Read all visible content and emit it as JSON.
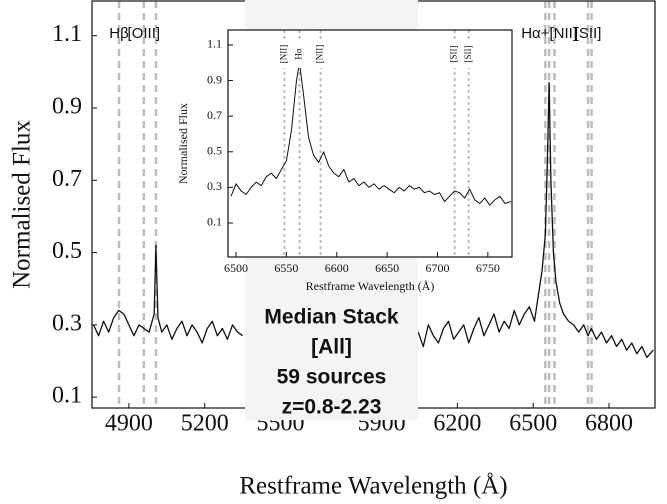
{
  "chart_data": [
    {
      "type": "line",
      "xlabel": "Restframe Wavelength (Å)",
      "ylabel": "Normalised Flux",
      "xlim": [
        4754,
        6982
      ],
      "ylim": [
        0.07,
        1.196
      ],
      "xticks": [
        4900,
        5200,
        5500,
        5900,
        6200,
        6500,
        6800
      ],
      "yticks": [
        0.1,
        0.3,
        0.5,
        0.7,
        0.9,
        1.1
      ],
      "x": [
        4760,
        4780,
        4800,
        4820,
        4840,
        4860,
        4880,
        4900,
        4920,
        4940,
        4960,
        4980,
        5000,
        5007,
        5015,
        5030,
        5050,
        5070,
        5090,
        5110,
        5130,
        5150,
        5170,
        5190,
        5210,
        5230,
        5250,
        5270,
        5290,
        5310,
        5330,
        5350,
        5700,
        6045,
        6065,
        6085,
        6105,
        6125,
        6145,
        6165,
        6185,
        6205,
        6225,
        6245,
        6265,
        6285,
        6305,
        6325,
        6345,
        6365,
        6385,
        6405,
        6425,
        6445,
        6465,
        6485,
        6505,
        6520,
        6535,
        6548,
        6556,
        6563,
        6570,
        6580,
        6590,
        6605,
        6620,
        6640,
        6660,
        6680,
        6700,
        6717,
        6730,
        6750,
        6770,
        6790,
        6810,
        6830,
        6850,
        6870,
        6890,
        6910,
        6930,
        6950,
        6975
      ],
      "series": [
        {
          "color": "#111111",
          "values": [
            0.3,
            0.27,
            0.31,
            0.28,
            0.32,
            0.34,
            0.33,
            0.3,
            0.27,
            0.3,
            0.29,
            0.28,
            0.33,
            0.52,
            0.32,
            0.28,
            0.3,
            0.26,
            0.29,
            0.31,
            0.27,
            0.3,
            0.28,
            0.25,
            0.29,
            0.31,
            0.27,
            0.29,
            0.26,
            0.3,
            0.28,
            0.27,
            null,
            0.28,
            0.24,
            0.3,
            0.27,
            0.25,
            0.29,
            0.31,
            0.26,
            0.28,
            0.3,
            0.25,
            0.29,
            0.32,
            0.27,
            0.3,
            0.33,
            0.28,
            0.31,
            0.29,
            0.34,
            0.3,
            0.33,
            0.35,
            0.31,
            0.38,
            0.45,
            0.55,
            0.75,
            0.97,
            0.7,
            0.5,
            0.42,
            0.36,
            0.33,
            0.31,
            0.3,
            0.28,
            0.3,
            0.27,
            0.29,
            0.26,
            0.28,
            0.25,
            0.27,
            0.24,
            0.26,
            0.23,
            0.25,
            0.22,
            0.24,
            0.21,
            0.23
          ]
        }
      ],
      "reference_lines": [
        {
          "x": 4861,
          "label": "Hβ"
        },
        {
          "x": 4959,
          "label": "[OIII]"
        },
        {
          "x": 5007
        },
        {
          "x": 6548
        },
        {
          "x": 6563,
          "label": "Hα+[NII]"
        },
        {
          "x": 6584
        },
        {
          "x": 6717,
          "label": "[SII]"
        },
        {
          "x": 6731
        }
      ],
      "annotation": [
        "Median Stack",
        "[All]",
        "59 sources",
        "z=0.8-2.23"
      ]
    },
    {
      "type": "line",
      "xlabel": "Restframe Wavelength (Å)",
      "ylabel": "Normalised Flux",
      "xlim": [
        6492,
        6774
      ],
      "ylim": [
        -0.091,
        1.184
      ],
      "xticks": [
        6500,
        6550,
        6600,
        6650,
        6700,
        6750
      ],
      "yticks": [
        0.1,
        0.3,
        0.5,
        0.7,
        0.9,
        1.1
      ],
      "x": [
        6495,
        6500,
        6505,
        6510,
        6515,
        6520,
        6525,
        6530,
        6535,
        6540,
        6545,
        6550,
        6555,
        6560,
        6563,
        6567,
        6572,
        6577,
        6582,
        6587,
        6592,
        6597,
        6602,
        6607,
        6612,
        6617,
        6622,
        6627,
        6632,
        6637,
        6642,
        6647,
        6652,
        6657,
        6662,
        6667,
        6672,
        6677,
        6682,
        6687,
        6692,
        6697,
        6702,
        6707,
        6712,
        6717,
        6722,
        6727,
        6732,
        6737,
        6742,
        6747,
        6752,
        6757,
        6762,
        6767,
        6773
      ],
      "series": [
        {
          "color": "#111111",
          "values": [
            0.25,
            0.32,
            0.28,
            0.26,
            0.3,
            0.33,
            0.31,
            0.36,
            0.38,
            0.35,
            0.4,
            0.45,
            0.62,
            0.9,
            1.0,
            0.82,
            0.58,
            0.48,
            0.44,
            0.5,
            0.42,
            0.38,
            0.36,
            0.4,
            0.33,
            0.35,
            0.31,
            0.33,
            0.3,
            0.32,
            0.29,
            0.31,
            0.29,
            0.27,
            0.3,
            0.28,
            0.31,
            0.29,
            0.3,
            0.27,
            0.28,
            0.26,
            0.27,
            0.22,
            0.25,
            0.28,
            0.27,
            0.24,
            0.29,
            0.23,
            0.21,
            0.24,
            0.2,
            0.23,
            0.25,
            0.21,
            0.22
          ]
        }
      ],
      "reference_lines": [
        {
          "x": 6548,
          "label": "[NII]"
        },
        {
          "x": 6563,
          "label": "Hα"
        },
        {
          "x": 6584,
          "label": "[NII]"
        },
        {
          "x": 6717,
          "label": "[SII]"
        },
        {
          "x": 6731,
          "label": "[SII]"
        }
      ]
    }
  ]
}
